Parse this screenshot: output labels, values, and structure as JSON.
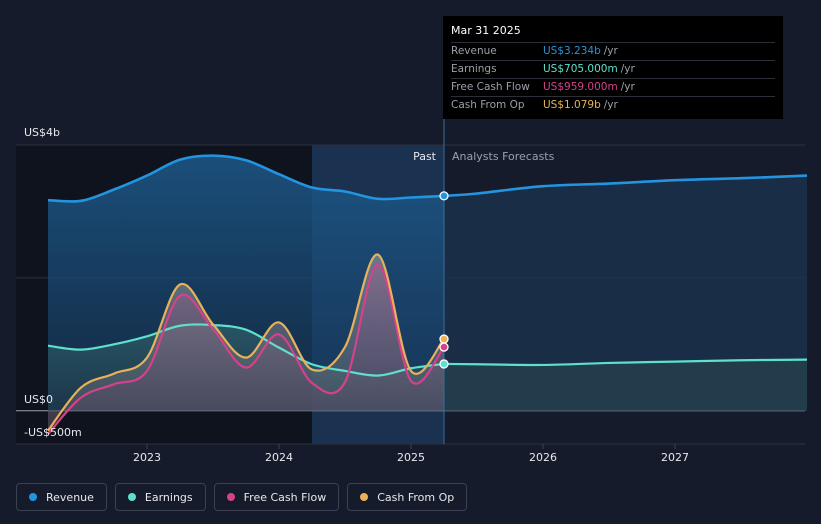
{
  "tooltip": {
    "date": "Mar 31 2025",
    "rows": [
      {
        "label": "Revenue",
        "value": "US$3.234b",
        "unit": "/yr",
        "color": "#2394df"
      },
      {
        "label": "Earnings",
        "value": "US$705.000m",
        "unit": "/yr",
        "color": "#5ee0cd"
      },
      {
        "label": "Free Cash Flow",
        "value": "US$959.000m",
        "unit": "/yr",
        "color": "#d6418a"
      },
      {
        "label": "Cash From Op",
        "value": "US$1.079b",
        "unit": "/yr",
        "color": "#e8b25a"
      }
    ]
  },
  "chart_data": {
    "type": "line",
    "y_axis": {
      "top_label": "US$4b",
      "zero_label": "US$0",
      "bottom_label": "-US$500m",
      "ylim": [
        -500,
        4000
      ],
      "unit": "US$m"
    },
    "x_ticks": [
      "2023",
      "2024",
      "2025",
      "2026",
      "2027"
    ],
    "past_label": "Past",
    "forecast_label": "Analysts Forecasts",
    "divider_date": 2025.25,
    "series": [
      {
        "name": "Revenue",
        "color": "#2394df",
        "points": [
          [
            2022.25,
            3170
          ],
          [
            2022.5,
            3160
          ],
          [
            2022.75,
            3330
          ],
          [
            2023.0,
            3540
          ],
          [
            2023.25,
            3780
          ],
          [
            2023.5,
            3840
          ],
          [
            2023.75,
            3770
          ],
          [
            2024.0,
            3560
          ],
          [
            2024.25,
            3360
          ],
          [
            2024.5,
            3300
          ],
          [
            2024.75,
            3190
          ],
          [
            2025.0,
            3210
          ],
          [
            2025.25,
            3234
          ]
        ],
        "forecast": [
          [
            2025.25,
            3234
          ],
          [
            2025.5,
            3270
          ],
          [
            2026.0,
            3380
          ],
          [
            2026.5,
            3420
          ],
          [
            2027.0,
            3470
          ],
          [
            2027.5,
            3500
          ],
          [
            2028.0,
            3540
          ]
        ]
      },
      {
        "name": "Earnings",
        "color": "#5ee0cd",
        "points": [
          [
            2022.25,
            980
          ],
          [
            2022.5,
            920
          ],
          [
            2022.75,
            1000
          ],
          [
            2023.0,
            1120
          ],
          [
            2023.25,
            1280
          ],
          [
            2023.5,
            1290
          ],
          [
            2023.75,
            1220
          ],
          [
            2024.0,
            950
          ],
          [
            2024.25,
            700
          ],
          [
            2024.5,
            600
          ],
          [
            2024.75,
            530
          ],
          [
            2025.0,
            640
          ],
          [
            2025.25,
            705
          ]
        ],
        "forecast": [
          [
            2025.25,
            705
          ],
          [
            2025.5,
            700
          ],
          [
            2026.0,
            690
          ],
          [
            2026.5,
            720
          ],
          [
            2027.0,
            740
          ],
          [
            2027.5,
            760
          ],
          [
            2028.0,
            770
          ]
        ]
      },
      {
        "name": "Free Cash Flow",
        "color": "#d6418a",
        "points": [
          [
            2022.25,
            -350
          ],
          [
            2022.5,
            200
          ],
          [
            2022.75,
            400
          ],
          [
            2023.0,
            600
          ],
          [
            2023.25,
            1730
          ],
          [
            2023.5,
            1230
          ],
          [
            2023.75,
            650
          ],
          [
            2024.0,
            1150
          ],
          [
            2024.25,
            420
          ],
          [
            2024.5,
            430
          ],
          [
            2024.75,
            2200
          ],
          [
            2025.0,
            450
          ],
          [
            2025.25,
            959
          ]
        ]
      },
      {
        "name": "Cash From Op",
        "color": "#e8b25a",
        "points": [
          [
            2022.25,
            -300
          ],
          [
            2022.5,
            350
          ],
          [
            2022.75,
            560
          ],
          [
            2023.0,
            800
          ],
          [
            2023.25,
            1900
          ],
          [
            2023.5,
            1300
          ],
          [
            2023.75,
            800
          ],
          [
            2024.0,
            1330
          ],
          [
            2024.25,
            620
          ],
          [
            2024.5,
            960
          ],
          [
            2024.75,
            2350
          ],
          [
            2025.0,
            600
          ],
          [
            2025.25,
            1079
          ]
        ]
      }
    ]
  },
  "legend": [
    {
      "label": "Revenue",
      "color": "#2394df"
    },
    {
      "label": "Earnings",
      "color": "#5ee0cd"
    },
    {
      "label": "Free Cash Flow",
      "color": "#d6418a"
    },
    {
      "label": "Cash From Op",
      "color": "#e8b25a"
    }
  ]
}
